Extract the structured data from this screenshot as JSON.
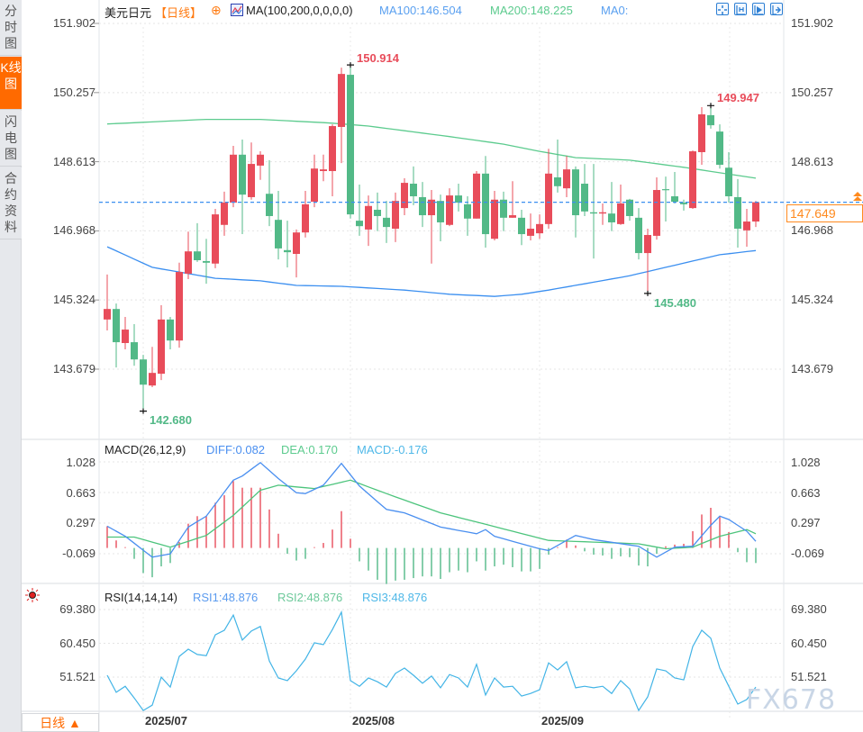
{
  "sidebar": {
    "tabs": [
      {
        "label": "分时图",
        "active": false
      },
      {
        "label": "K线图",
        "active": true
      },
      {
        "label": "闪电图",
        "active": false
      },
      {
        "label": "合约资料",
        "active": false
      }
    ]
  },
  "header": {
    "symbol": "美元日元",
    "period": "【日线】",
    "indicator": "MA(100,200,0,0,0,0)",
    "ma100": "MA100:146.504",
    "ma200": "MA200:148.225",
    "ma0": "MA0:"
  },
  "toolbar": {
    "icons": [
      "crosshair-icon",
      "range-select-icon",
      "play-icon",
      "exit-icon"
    ]
  },
  "price_axis": {
    "ticks": [
      "151.902",
      "150.257",
      "148.613",
      "146.968",
      "145.324",
      "143.679"
    ]
  },
  "last_price": "147.649",
  "annotations": {
    "high": "150.914",
    "low": "142.680",
    "recent_high": "149.947",
    "recent_low": "145.480"
  },
  "macd": {
    "title": "MACD(26,12,9)",
    "diff": "DIFF:0.082",
    "dea": "DEA:0.170",
    "macd": "MACD:-0.176",
    "ticks": [
      "1.028",
      "0.663",
      "0.297",
      "-0.069"
    ]
  },
  "rsi": {
    "title": "RSI(14,14,14)",
    "rsi1": "RSI1:48.876",
    "rsi2": "RSI2:48.876",
    "rsi3": "RSI3:48.876",
    "ticks": [
      "69.380",
      "60.450",
      "51.521"
    ]
  },
  "period_button": "日线 ▲",
  "watermark": "FX678",
  "colors": {
    "up": "#e84c5a",
    "down": "#52b987",
    "ma100": "#3b8ff0",
    "ma200": "#5ccb8e",
    "diff": "#4a8ff0",
    "dea": "#4cc47c",
    "rsi": "#42b4e6",
    "accent": "#ff6a00"
  },
  "chart_data": {
    "type": "candlestick",
    "x_ticks": [
      {
        "label": "2025/07",
        "index": 4
      },
      {
        "label": "2025/08",
        "index": 27
      },
      {
        "label": "2025/09",
        "index": 48
      }
    ],
    "ylim": [
      142.3,
      152.2
    ],
    "ohlc": [
      [
        144.86,
        145.93,
        144.6,
        145.11
      ],
      [
        145.11,
        145.24,
        143.72,
        144.32
      ],
      [
        144.3,
        144.92,
        144.15,
        144.62
      ],
      [
        144.32,
        144.75,
        143.76,
        143.91
      ],
      [
        143.91,
        144.02,
        142.68,
        143.31
      ],
      [
        143.29,
        144.21,
        143.25,
        143.59
      ],
      [
        143.57,
        145.2,
        143.42,
        144.86
      ],
      [
        144.86,
        144.92,
        144.15,
        144.36
      ],
      [
        144.36,
        146.21,
        144.19,
        145.99
      ],
      [
        145.95,
        146.95,
        145.82,
        146.48
      ],
      [
        146.48,
        147.15,
        146.23,
        146.27
      ],
      [
        146.25,
        146.78,
        145.71,
        146.21
      ],
      [
        146.19,
        147.49,
        146.08,
        147.36
      ],
      [
        147.11,
        147.9,
        146.85,
        147.64
      ],
      [
        147.64,
        148.99,
        147.53,
        148.78
      ],
      [
        148.78,
        149.14,
        146.89,
        147.83
      ],
      [
        147.77,
        149.07,
        147.71,
        148.56
      ],
      [
        148.52,
        148.86,
        148.18,
        148.78
      ],
      [
        147.85,
        148.65,
        147.08,
        147.32
      ],
      [
        147.23,
        147.92,
        146.29,
        146.55
      ],
      [
        146.51,
        147.21,
        146.1,
        146.46
      ],
      [
        146.42,
        147.0,
        145.86,
        146.93
      ],
      [
        146.93,
        147.92,
        146.81,
        147.6
      ],
      [
        147.66,
        148.78,
        147.53,
        148.45
      ],
      [
        148.39,
        148.78,
        148.15,
        148.43
      ],
      [
        148.39,
        149.5,
        147.79,
        149.46
      ],
      [
        149.44,
        150.85,
        148.58,
        150.7
      ],
      [
        150.68,
        150.914,
        147.26,
        147.36
      ],
      [
        147.21,
        148.07,
        146.85,
        147.08
      ],
      [
        147.0,
        147.81,
        146.61,
        147.56
      ],
      [
        147.47,
        147.88,
        146.96,
        147.32
      ],
      [
        147.28,
        147.68,
        146.68,
        147.06
      ],
      [
        147.02,
        147.88,
        146.7,
        147.68
      ],
      [
        147.51,
        148.22,
        147.34,
        148.11
      ],
      [
        148.09,
        148.5,
        147.58,
        147.79
      ],
      [
        147.77,
        148.13,
        147.06,
        147.34
      ],
      [
        147.34,
        147.94,
        146.19,
        147.71
      ],
      [
        147.68,
        147.83,
        146.72,
        147.17
      ],
      [
        147.11,
        147.98,
        147.08,
        147.81
      ],
      [
        147.81,
        148.09,
        147.43,
        147.64
      ],
      [
        147.6,
        147.79,
        146.85,
        147.26
      ],
      [
        147.26,
        148.39,
        147.26,
        148.33
      ],
      [
        148.33,
        148.75,
        146.57,
        146.89
      ],
      [
        146.78,
        147.92,
        146.74,
        147.71
      ],
      [
        147.71,
        147.9,
        146.96,
        147.28
      ],
      [
        147.28,
        148.15,
        147.28,
        147.34
      ],
      [
        147.28,
        147.47,
        146.63,
        146.89
      ],
      [
        146.85,
        147.38,
        146.74,
        147.02
      ],
      [
        146.91,
        147.36,
        146.78,
        147.13
      ],
      [
        147.13,
        148.92,
        147.02,
        148.33
      ],
      [
        148.24,
        149.14,
        147.88,
        148.03
      ],
      [
        147.98,
        148.75,
        147.77,
        148.43
      ],
      [
        148.43,
        148.5,
        146.81,
        147.34
      ],
      [
        148.09,
        148.56,
        147.32,
        147.43
      ],
      [
        147.41,
        148.56,
        146.31,
        147.38
      ],
      [
        147.38,
        147.62,
        147.11,
        147.41
      ],
      [
        147.38,
        148.13,
        146.96,
        147.17
      ],
      [
        147.13,
        148.07,
        147.11,
        147.62
      ],
      [
        147.71,
        147.73,
        147.21,
        147.32
      ],
      [
        147.28,
        147.51,
        146.29,
        146.44
      ],
      [
        146.44,
        147.02,
        145.48,
        146.87
      ],
      [
        146.85,
        148.24,
        146.76,
        147.94
      ],
      [
        147.96,
        148.26,
        147.19,
        147.94
      ],
      [
        147.79,
        148.37,
        147.62,
        147.66
      ],
      [
        147.64,
        147.71,
        147.45,
        147.6
      ],
      [
        147.51,
        148.88,
        147.49,
        148.86
      ],
      [
        148.84,
        149.91,
        148.54,
        149.74
      ],
      [
        149.72,
        149.947,
        149.4,
        149.48
      ],
      [
        149.33,
        149.5,
        148.45,
        148.54
      ],
      [
        148.47,
        148.84,
        147.64,
        147.79
      ],
      [
        147.77,
        148.2,
        146.57,
        147.02
      ],
      [
        146.98,
        147.49,
        146.59,
        147.19
      ],
      [
        147.19,
        147.68,
        147.06,
        147.649
      ]
    ],
    "ma100": [
      [
        0,
        146.59
      ],
      [
        5,
        146.1
      ],
      [
        8,
        145.99
      ],
      [
        12,
        145.84
      ],
      [
        17,
        145.78
      ],
      [
        21,
        145.67
      ],
      [
        26,
        145.65
      ],
      [
        33,
        145.56
      ],
      [
        38,
        145.46
      ],
      [
        43,
        145.41
      ],
      [
        46,
        145.46
      ],
      [
        49,
        145.56
      ],
      [
        53,
        145.71
      ],
      [
        58,
        145.9
      ],
      [
        64,
        146.2
      ],
      [
        68,
        146.4
      ],
      [
        72,
        146.5
      ]
    ],
    "ma200": [
      [
        0,
        149.51
      ],
      [
        11,
        149.62
      ],
      [
        17,
        149.62
      ],
      [
        25,
        149.53
      ],
      [
        29,
        149.46
      ],
      [
        38,
        149.21
      ],
      [
        44,
        149.03
      ],
      [
        48,
        148.86
      ],
      [
        52,
        148.71
      ],
      [
        58,
        148.65
      ],
      [
        64,
        148.48
      ],
      [
        68,
        148.35
      ],
      [
        72,
        148.22
      ]
    ],
    "macd_hist": [
      0.26,
      0.09,
      0.01,
      -0.13,
      -0.3,
      -0.35,
      -0.22,
      -0.18,
      0.07,
      0.29,
      0.38,
      0.38,
      0.54,
      0.63,
      0.8,
      0.72,
      0.72,
      0.72,
      0.46,
      0.17,
      -0.07,
      -0.15,
      -0.13,
      0.01,
      0.06,
      0.22,
      0.44,
      0.11,
      -0.16,
      -0.27,
      -0.38,
      -0.43,
      -0.39,
      -0.38,
      -0.36,
      -0.34,
      -0.34,
      -0.37,
      -0.29,
      -0.27,
      -0.29,
      -0.16,
      -0.27,
      -0.22,
      -0.2,
      -0.23,
      -0.28,
      -0.28,
      -0.25,
      -0.08,
      0.01,
      0.1,
      0.03,
      -0.04,
      -0.08,
      -0.09,
      -0.13,
      -0.1,
      -0.11,
      -0.21,
      -0.22,
      -0.07,
      0.02,
      0.04,
      0.05,
      0.2,
      0.4,
      0.48,
      0.37,
      0.19,
      -0.05,
      -0.17,
      -0.18
    ],
    "diff": [
      [
        0,
        0.26
      ],
      [
        2,
        0.14
      ],
      [
        5,
        -0.11
      ],
      [
        7,
        -0.07
      ],
      [
        9,
        0.25
      ],
      [
        11,
        0.38
      ],
      [
        14,
        0.81
      ],
      [
        15,
        0.86
      ],
      [
        17,
        1.02
      ],
      [
        19,
        0.83
      ],
      [
        21,
        0.66
      ],
      [
        22,
        0.65
      ],
      [
        24,
        0.75
      ],
      [
        26,
        1.01
      ],
      [
        28,
        0.74
      ],
      [
        31,
        0.46
      ],
      [
        33,
        0.42
      ],
      [
        37,
        0.25
      ],
      [
        41,
        0.17
      ],
      [
        42,
        0.22
      ],
      [
        43,
        0.14
      ],
      [
        48,
        -0.01
      ],
      [
        49,
        -0.03
      ],
      [
        52,
        0.15
      ],
      [
        54,
        0.1
      ],
      [
        59,
        0.02
      ],
      [
        61,
        -0.11
      ],
      [
        63,
        0.01
      ],
      [
        65,
        0.02
      ],
      [
        67,
        0.27
      ],
      [
        68,
        0.38
      ],
      [
        69,
        0.34
      ],
      [
        71,
        0.2
      ],
      [
        72,
        0.08
      ]
    ],
    "dea": [
      [
        0,
        0.13
      ],
      [
        3,
        0.13
      ],
      [
        7,
        0.01
      ],
      [
        11,
        0.15
      ],
      [
        14,
        0.39
      ],
      [
        17,
        0.69
      ],
      [
        19,
        0.75
      ],
      [
        23,
        0.71
      ],
      [
        27,
        0.81
      ],
      [
        32,
        0.61
      ],
      [
        37,
        0.42
      ],
      [
        49,
        0.09
      ],
      [
        59,
        0.05
      ],
      [
        62,
        -0.01
      ],
      [
        65,
        0.01
      ],
      [
        68,
        0.14
      ],
      [
        71,
        0.22
      ],
      [
        72,
        0.17
      ]
    ],
    "macd_ylim": [
      -0.25,
      1.1
    ],
    "rsi_values": [
      52.0,
      47.5,
      49.1,
      46.0,
      42.7,
      44.1,
      51.5,
      48.9,
      57.0,
      58.9,
      57.5,
      57.2,
      62.7,
      63.9,
      67.9,
      61.3,
      63.7,
      64.9,
      55.8,
      51.3,
      50.6,
      53.2,
      56.3,
      60.6,
      60.1,
      64.1,
      68.7,
      50.6,
      49.1,
      51.3,
      50.3,
      48.9,
      52.5,
      53.9,
      52.0,
      49.9,
      51.8,
      48.7,
      52.2,
      51.3,
      48.9,
      54.9,
      46.8,
      51.3,
      48.9,
      49.1,
      46.5,
      47.2,
      48.2,
      55.3,
      53.4,
      55.6,
      48.7,
      49.1,
      48.7,
      49.1,
      47.2,
      50.6,
      48.4,
      42.7,
      46.3,
      53.7,
      53.2,
      51.3,
      50.8,
      59.6,
      63.9,
      61.8,
      53.9,
      49.1,
      44.4,
      45.6,
      48.9
    ]
  }
}
